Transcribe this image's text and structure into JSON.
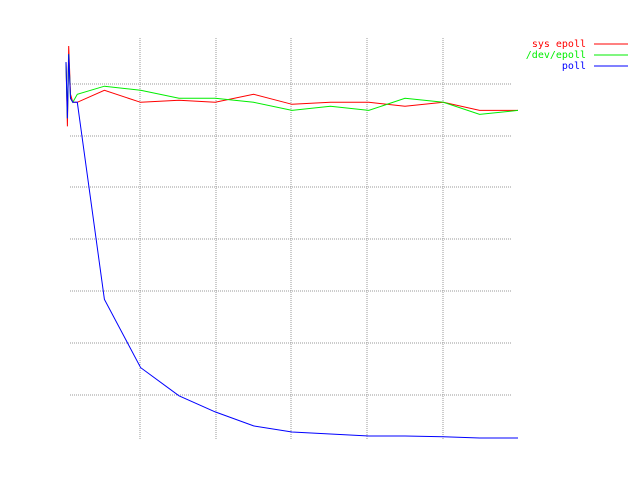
{
  "chart_data": {
    "type": "line",
    "title": "",
    "xlabel": "",
    "ylabel": "",
    "grid": true,
    "legend_position": "top-right",
    "xlim": [
      0,
      100
    ],
    "ylim": [
      0,
      100
    ],
    "series": [
      {
        "name": "sys epoll",
        "color": "#ff0000",
        "x": [
          0,
          0.3,
          0.6,
          1.0,
          1.5,
          2.5,
          8.5,
          16.5,
          25,
          33,
          41.5,
          50,
          58.5,
          67,
          75,
          83.5,
          91.5,
          100
        ],
        "y": [
          94,
          78,
          98,
          86,
          84,
          84,
          87,
          84,
          84.5,
          84,
          86,
          83.5,
          84,
          84,
          83,
          84,
          82,
          82
        ]
      },
      {
        "name": "/dev/epoll",
        "color": "#00ee00",
        "x": [
          0,
          0.3,
          0.6,
          1.0,
          1.5,
          2.5,
          8.5,
          16.5,
          25,
          33,
          41.5,
          50,
          58.5,
          67,
          75,
          83.5,
          91.5,
          100
        ],
        "y": [
          94,
          80,
          96,
          85,
          84,
          86,
          88,
          87,
          85,
          85,
          84,
          82,
          83,
          82,
          85,
          84,
          81,
          82
        ]
      },
      {
        "name": "poll",
        "color": "#0000ff",
        "x": [
          0,
          0.3,
          0.6,
          1.0,
          1.5,
          2.5,
          8.5,
          16.5,
          25,
          33,
          41.5,
          50,
          58.5,
          67,
          75,
          83.5,
          91.5,
          100
        ],
        "y": [
          94,
          80,
          96,
          85,
          84,
          84,
          35,
          18,
          11,
          7,
          3.5,
          2,
          1.5,
          1,
          1,
          0.8,
          0.5,
          0.5
        ]
      }
    ]
  }
}
